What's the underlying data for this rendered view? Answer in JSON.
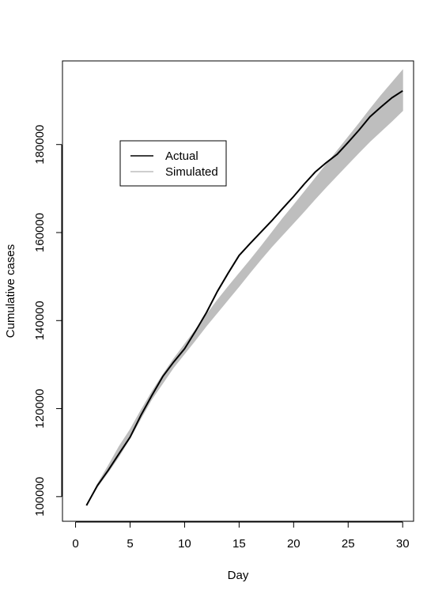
{
  "chart_data": {
    "type": "line",
    "xlabel": "Day",
    "ylabel": "Cumulative cases",
    "xlim": [
      0,
      30
    ],
    "ylim": [
      98000,
      194000
    ],
    "x_ticks": [
      0,
      5,
      10,
      15,
      20,
      25,
      30
    ],
    "y_ticks": [
      100000,
      120000,
      140000,
      160000,
      180000
    ],
    "x_tick_labels": [
      "0",
      "5",
      "10",
      "15",
      "20",
      "25",
      "30"
    ],
    "y_tick_labels": [
      "100000",
      "120000",
      "140000",
      "160000",
      "180000"
    ],
    "grid": false,
    "legend": {
      "position": "upper-left",
      "entries": [
        {
          "label": "Actual",
          "color": "#000000"
        },
        {
          "label": "Simulated",
          "color": "#bebebe"
        }
      ]
    },
    "series": [
      {
        "name": "Actual",
        "color": "#000000",
        "x": [
          1,
          2,
          3,
          4,
          5,
          6,
          7,
          8,
          9,
          10,
          11,
          12,
          13,
          14,
          15,
          16,
          17,
          18,
          19,
          20,
          21,
          22,
          23,
          24,
          25,
          26,
          27,
          28,
          29,
          30
        ],
        "values": [
          98000,
          102500,
          106000,
          109800,
          113500,
          118500,
          123000,
          127300,
          130600,
          133600,
          137600,
          141800,
          146600,
          150800,
          154800,
          157500,
          160100,
          162700,
          165500,
          168200,
          171100,
          173800,
          175900,
          177800,
          180500,
          183300,
          186300,
          188500,
          190600,
          192200
        ]
      },
      {
        "name": "Simulated",
        "color": "#bebebe",
        "x": [
          1,
          2,
          3,
          4,
          5,
          6,
          7,
          8,
          9,
          10,
          11,
          12,
          13,
          14,
          15,
          16,
          17,
          18,
          19,
          20,
          21,
          22,
          23,
          24,
          25,
          26,
          27,
          28,
          29,
          30
        ],
        "lower": [
          98000,
          102200,
          105600,
          109200,
          113300,
          117800,
          122200,
          125800,
          129400,
          132500,
          135600,
          138800,
          141800,
          144800,
          147800,
          150900,
          153900,
          156800,
          159500,
          162200,
          164900,
          167700,
          170400,
          173000,
          175600,
          178200,
          180700,
          183000,
          185300,
          187700
        ],
        "upper": [
          98000,
          102800,
          107000,
          111400,
          115200,
          119600,
          123800,
          127700,
          131300,
          134600,
          137900,
          141300,
          144600,
          147700,
          150700,
          153700,
          156800,
          160000,
          163200,
          166200,
          169300,
          172400,
          175500,
          178600,
          181700,
          184800,
          188000,
          191100,
          194000,
          196900
        ]
      }
    ]
  }
}
